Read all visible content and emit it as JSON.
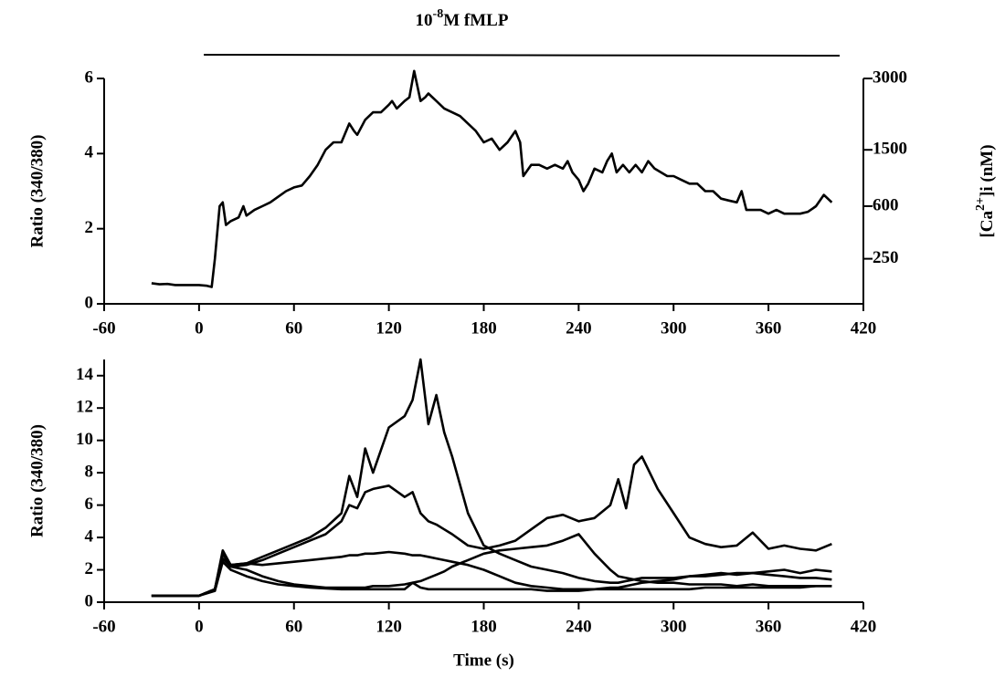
{
  "chart_data": [
    {
      "type": "line",
      "annotation": {
        "base": "10",
        "superscript": "-8",
        "rest": "M fMLP",
        "xrange": [
          3,
          405
        ]
      },
      "ylabel": "Ratio (340/380)",
      "y2label": {
        "base": "[Ca",
        "superscript": "2+",
        "rest": "]i (nM)"
      },
      "x": [
        -30,
        -25,
        -20,
        -15,
        -10,
        -5,
        0,
        5,
        8,
        10,
        13,
        15,
        17,
        20,
        25,
        28,
        30,
        35,
        40,
        45,
        50,
        55,
        60,
        65,
        70,
        75,
        80,
        85,
        90,
        95,
        98,
        100,
        105,
        110,
        115,
        120,
        122,
        125,
        130,
        133,
        136,
        138,
        140,
        143,
        145,
        150,
        155,
        160,
        165,
        170,
        175,
        180,
        185,
        190,
        195,
        200,
        203,
        205,
        210,
        215,
        220,
        225,
        230,
        233,
        236,
        240,
        243,
        246,
        250,
        255,
        258,
        261,
        264,
        268,
        272,
        276,
        280,
        284,
        288,
        292,
        296,
        300,
        305,
        310,
        315,
        320,
        325,
        330,
        335,
        340,
        343,
        346,
        350,
        355,
        360,
        365,
        370,
        375,
        380,
        385,
        390,
        395,
        400
      ],
      "series": [
        {
          "color": "#000000",
          "values": [
            0.55,
            0.52,
            0.53,
            0.5,
            0.5,
            0.5,
            0.5,
            0.48,
            0.45,
            1.2,
            2.6,
            2.7,
            2.1,
            2.2,
            2.3,
            2.6,
            2.35,
            2.5,
            2.6,
            2.7,
            2.85,
            3.0,
            3.1,
            3.15,
            3.4,
            3.7,
            4.1,
            4.3,
            4.3,
            4.8,
            4.6,
            4.5,
            4.9,
            5.1,
            5.1,
            5.3,
            5.4,
            5.2,
            5.4,
            5.5,
            6.2,
            5.8,
            5.4,
            5.5,
            5.6,
            5.4,
            5.2,
            5.1,
            5.0,
            4.8,
            4.6,
            4.3,
            4.4,
            4.1,
            4.3,
            4.6,
            4.3,
            3.4,
            3.7,
            3.7,
            3.6,
            3.7,
            3.6,
            3.8,
            3.5,
            3.3,
            3.0,
            3.2,
            3.6,
            3.5,
            3.8,
            4.0,
            3.5,
            3.7,
            3.5,
            3.7,
            3.5,
            3.8,
            3.6,
            3.5,
            3.4,
            3.4,
            3.3,
            3.2,
            3.2,
            3.0,
            3.0,
            2.8,
            2.75,
            2.7,
            3.0,
            2.5,
            2.5,
            2.5,
            2.4,
            2.5,
            2.4,
            2.4,
            2.4,
            2.45,
            2.6,
            2.9,
            2.7
          ]
        }
      ],
      "xlim": [
        -60,
        420
      ],
      "xticks": [
        -60,
        0,
        60,
        120,
        180,
        240,
        300,
        360,
        420
      ],
      "ylim": [
        0,
        6
      ],
      "yticks": [
        0,
        2,
        4,
        6
      ],
      "y2ticks": [
        250,
        600,
        1500,
        3000
      ],
      "y2_ratio": [
        1.2,
        2.6,
        4.1,
        6.0
      ]
    },
    {
      "type": "line",
      "ylabel": "Ratio (340/380)",
      "xlabel": "Time (s)",
      "x": [
        -30,
        -20,
        -10,
        0,
        10,
        15,
        20,
        30,
        40,
        50,
        60,
        70,
        80,
        90,
        95,
        100,
        105,
        110,
        120,
        130,
        135,
        140,
        145,
        150,
        155,
        160,
        170,
        180,
        190,
        200,
        210,
        220,
        230,
        240,
        250,
        260,
        265,
        270,
        275,
        280,
        290,
        300,
        310,
        320,
        330,
        340,
        350,
        360,
        370,
        380,
        390,
        400
      ],
      "series": [
        {
          "color": "#000000",
          "values": [
            0.4,
            0.4,
            0.4,
            0.4,
            0.8,
            3.2,
            2.3,
            2.4,
            2.8,
            3.2,
            3.6,
            4.0,
            4.6,
            5.5,
            7.8,
            6.5,
            9.5,
            8.0,
            10.8,
            11.5,
            12.5,
            15.0,
            11.0,
            12.8,
            10.5,
            9.0,
            5.5,
            3.5,
            3.0,
            2.6,
            2.2,
            2.0,
            1.8,
            1.5,
            1.3,
            1.2,
            1.2,
            1.3,
            1.4,
            1.5,
            1.5,
            1.5,
            1.6,
            1.7,
            1.8,
            1.7,
            1.8,
            1.7,
            1.6,
            1.5,
            1.5,
            1.4
          ]
        },
        {
          "color": "#000000",
          "values": [
            0.4,
            0.4,
            0.4,
            0.4,
            0.8,
            3.0,
            2.2,
            2.3,
            2.6,
            3.0,
            3.4,
            3.8,
            4.2,
            5.0,
            6.0,
            5.8,
            6.8,
            7.0,
            7.2,
            6.5,
            6.8,
            5.5,
            5.0,
            4.8,
            4.5,
            4.2,
            3.5,
            3.3,
            3.5,
            3.8,
            4.5,
            5.2,
            5.4,
            5.0,
            5.2,
            6.0,
            7.6,
            5.8,
            8.5,
            9.0,
            7.0,
            5.5,
            4.0,
            3.6,
            3.4,
            3.5,
            4.3,
            3.3,
            3.5,
            3.3,
            3.2,
            3.6
          ]
        },
        {
          "color": "#000000",
          "values": [
            0.4,
            0.4,
            0.4,
            0.4,
            0.8,
            3.0,
            2.3,
            2.4,
            2.3,
            2.4,
            2.5,
            2.6,
            2.7,
            2.8,
            2.9,
            2.9,
            3.0,
            3.0,
            3.1,
            3.0,
            2.9,
            2.9,
            2.8,
            2.7,
            2.6,
            2.5,
            2.3,
            2.0,
            1.6,
            1.2,
            1.0,
            0.9,
            0.8,
            0.8,
            0.8,
            0.9,
            0.9,
            1.0,
            1.1,
            1.2,
            1.3,
            1.4,
            1.6,
            1.6,
            1.7,
            1.8,
            1.8,
            1.9,
            2.0,
            1.8,
            2.0,
            1.9
          ]
        },
        {
          "color": "#000000",
          "values": [
            0.4,
            0.4,
            0.4,
            0.4,
            0.8,
            2.7,
            2.2,
            2.0,
            1.6,
            1.3,
            1.1,
            1.0,
            0.9,
            0.9,
            0.9,
            0.9,
            0.9,
            1.0,
            1.0,
            1.1,
            1.2,
            1.3,
            1.5,
            1.7,
            1.9,
            2.2,
            2.6,
            3.0,
            3.2,
            3.3,
            3.4,
            3.5,
            3.8,
            4.2,
            3.0,
            2.0,
            1.6,
            1.5,
            1.4,
            1.3,
            1.2,
            1.2,
            1.1,
            1.1,
            1.1,
            1.0,
            1.1,
            1.0,
            1.0,
            1.0,
            1.0,
            1.0
          ]
        },
        {
          "color": "#000000",
          "values": [
            0.4,
            0.4,
            0.4,
            0.4,
            0.7,
            2.5,
            2.0,
            1.6,
            1.3,
            1.1,
            1.0,
            0.9,
            0.85,
            0.8,
            0.8,
            0.8,
            0.8,
            0.8,
            0.8,
            0.8,
            1.2,
            0.9,
            0.8,
            0.8,
            0.8,
            0.8,
            0.8,
            0.8,
            0.8,
            0.8,
            0.8,
            0.7,
            0.7,
            0.7,
            0.8,
            0.8,
            0.8,
            0.8,
            0.8,
            0.8,
            0.8,
            0.8,
            0.8,
            0.9,
            0.9,
            0.9,
            0.9,
            0.9,
            0.9,
            0.9,
            1.0,
            1.0
          ]
        }
      ],
      "xlim": [
        -60,
        420
      ],
      "xticks": [
        -60,
        0,
        60,
        120,
        180,
        240,
        300,
        360,
        420
      ],
      "ylim": [
        0,
        15
      ],
      "yticks": [
        0,
        2,
        4,
        6,
        8,
        10,
        12,
        14
      ]
    }
  ]
}
